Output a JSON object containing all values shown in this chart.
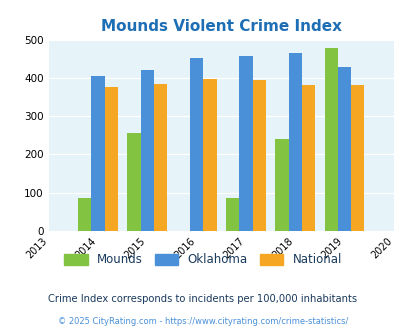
{
  "title": "Mounds Violent Crime Index",
  "title_color": "#1e6eb5",
  "years": [
    2014,
    2015,
    2016,
    2017,
    2018,
    2019
  ],
  "mounds": [
    87,
    257,
    0,
    87,
    241,
    479
  ],
  "oklahoma": [
    404,
    421,
    451,
    458,
    465,
    428
  ],
  "national": [
    376,
    383,
    396,
    394,
    381,
    381
  ],
  "bar_colors": {
    "mounds": "#82c341",
    "oklahoma": "#4a90d9",
    "national": "#f5a623"
  },
  "xlim": [
    2013,
    2020
  ],
  "ylim": [
    0,
    500
  ],
  "yticks": [
    0,
    100,
    200,
    300,
    400,
    500
  ],
  "xticks": [
    2013,
    2014,
    2015,
    2016,
    2017,
    2018,
    2019,
    2020
  ],
  "legend_labels": [
    "Mounds",
    "Oklahoma",
    "National"
  ],
  "footnote1": "Crime Index corresponds to incidents per 100,000 inhabitants",
  "footnote2": "© 2025 CityRating.com - https://www.cityrating.com/crime-statistics/",
  "footnote1_color": "#1a3a5c",
  "footnote2_color": "#4a90d9",
  "bg_color": "#e6f3f8",
  "fig_bg": "#ffffff",
  "bar_width": 0.27
}
